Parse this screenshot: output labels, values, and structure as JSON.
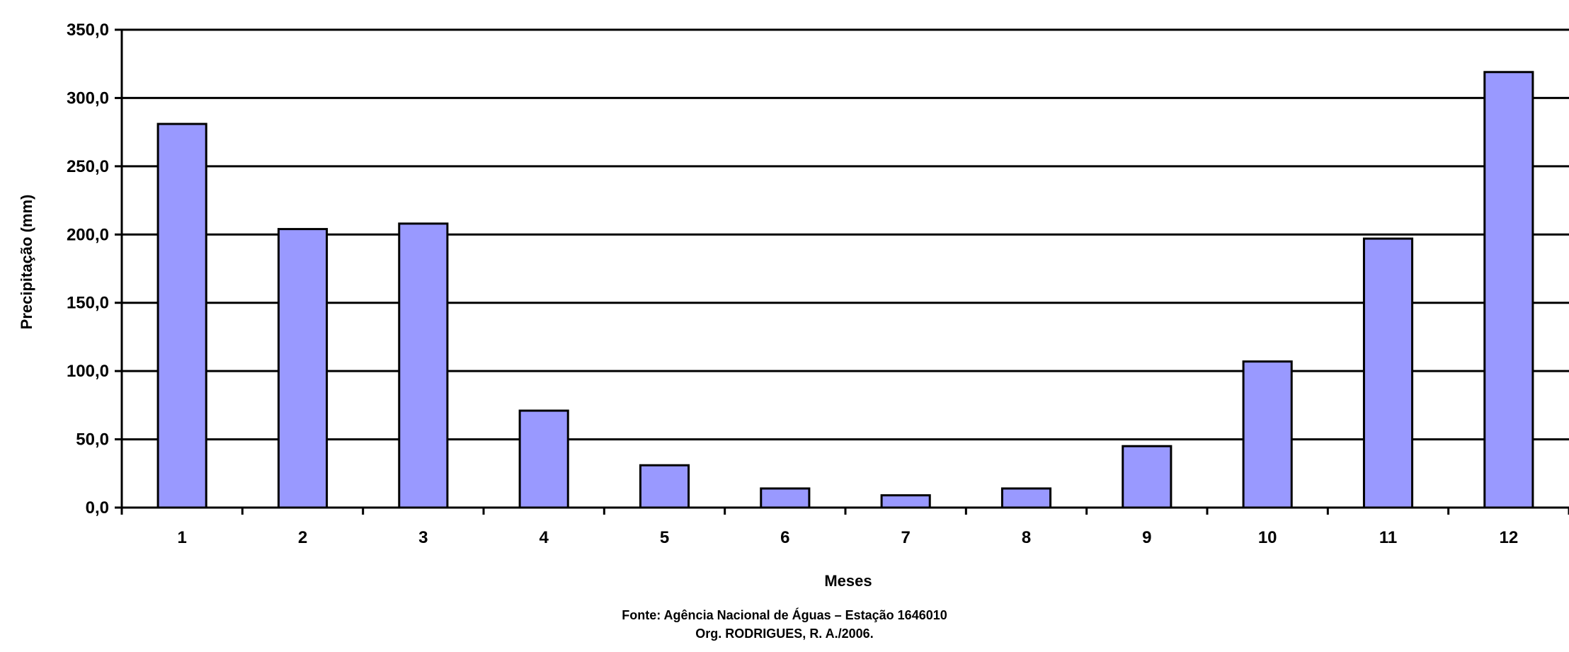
{
  "chart_data": {
    "type": "bar",
    "title": "",
    "xlabel": "Meses",
    "ylabel": "Precipitação (mm)",
    "categories": [
      "1",
      "2",
      "3",
      "4",
      "5",
      "6",
      "7",
      "8",
      "9",
      "10",
      "11",
      "12"
    ],
    "values": [
      281,
      204,
      208,
      71,
      31,
      14,
      9,
      14,
      45,
      107,
      197,
      319
    ],
    "ylim": [
      0,
      350
    ],
    "yticks": [
      "0,0",
      "50,0",
      "100,0",
      "150,0",
      "200,0",
      "250,0",
      "300,0",
      "350,0"
    ],
    "grid": true,
    "legend": "none",
    "colors": {
      "bar_fill": "#9999ff",
      "bar_stroke": "#000000",
      "grid": "#000000"
    }
  },
  "caption": {
    "source": "Fonte: Agência Nacional de Águas – Estação 1646010",
    "author": "Org. RODRIGUES, R. A./2006."
  }
}
